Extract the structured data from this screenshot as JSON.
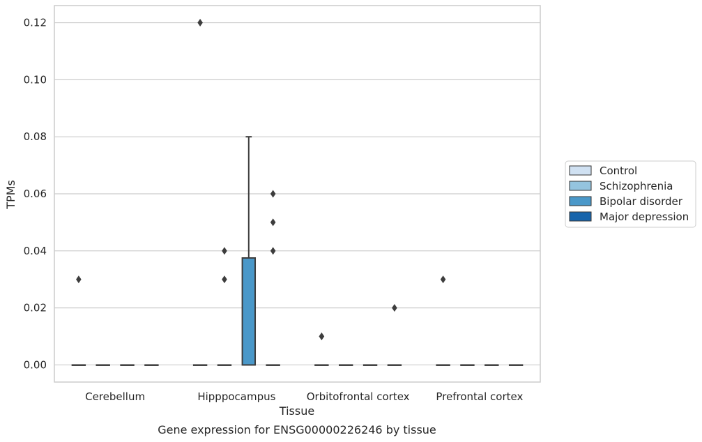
{
  "caption": "Gene expression for ENSG00000226246 by tissue",
  "chart_data": {
    "type": "box",
    "xlabel": "Tissue",
    "ylabel": "TPMs",
    "ylim": [
      -0.006,
      0.126
    ],
    "yticks": [
      "0.00",
      "0.02",
      "0.04",
      "0.06",
      "0.08",
      "0.10",
      "0.12"
    ],
    "categories": [
      "Cerebellum",
      "Hipppocampus",
      "Orbitofrontal cortex",
      "Prefrontal cortex"
    ],
    "grid": true,
    "legend_position": "right",
    "series": [
      {
        "name": "Control",
        "color": "#d0e1f2"
      },
      {
        "name": "Schizophrenia",
        "color": "#94c4df"
      },
      {
        "name": "Bipolar disorder",
        "color": "#4a98c9"
      },
      {
        "name": "Major depression",
        "color": "#1764ab"
      }
    ],
    "boxes": [
      {
        "category": "Cerebellum",
        "series": "Control",
        "q1": 0,
        "median": 0,
        "q3": 0,
        "whisker_low": 0,
        "whisker_high": 0,
        "outliers": [
          0.03
        ]
      },
      {
        "category": "Cerebellum",
        "series": "Schizophrenia",
        "q1": 0,
        "median": 0,
        "q3": 0,
        "whisker_low": 0,
        "whisker_high": 0,
        "outliers": []
      },
      {
        "category": "Cerebellum",
        "series": "Bipolar disorder",
        "q1": 0,
        "median": 0,
        "q3": 0,
        "whisker_low": 0,
        "whisker_high": 0,
        "outliers": []
      },
      {
        "category": "Cerebellum",
        "series": "Major depression",
        "q1": 0,
        "median": 0,
        "q3": 0,
        "whisker_low": 0,
        "whisker_high": 0,
        "outliers": []
      },
      {
        "category": "Hipppocampus",
        "series": "Control",
        "q1": 0,
        "median": 0,
        "q3": 0,
        "whisker_low": 0,
        "whisker_high": 0,
        "outliers": [
          0.12
        ]
      },
      {
        "category": "Hipppocampus",
        "series": "Schizophrenia",
        "q1": 0,
        "median": 0,
        "q3": 0,
        "whisker_low": 0,
        "whisker_high": 0,
        "outliers": [
          0.04,
          0.03
        ]
      },
      {
        "category": "Hipppocampus",
        "series": "Bipolar disorder",
        "q1": 0,
        "median": 0,
        "q3": 0.0375,
        "whisker_low": 0,
        "whisker_high": 0.08,
        "outliers": []
      },
      {
        "category": "Hipppocampus",
        "series": "Major depression",
        "q1": 0,
        "median": 0,
        "q3": 0,
        "whisker_low": 0,
        "whisker_high": 0,
        "outliers": [
          0.06,
          0.05,
          0.04
        ]
      },
      {
        "category": "Orbitofrontal cortex",
        "series": "Control",
        "q1": 0,
        "median": 0,
        "q3": 0,
        "whisker_low": 0,
        "whisker_high": 0,
        "outliers": [
          0.01,
          0.01
        ]
      },
      {
        "category": "Orbitofrontal cortex",
        "series": "Schizophrenia",
        "q1": 0,
        "median": 0,
        "q3": 0,
        "whisker_low": 0,
        "whisker_high": 0,
        "outliers": []
      },
      {
        "category": "Orbitofrontal cortex",
        "series": "Bipolar disorder",
        "q1": 0,
        "median": 0,
        "q3": 0,
        "whisker_low": 0,
        "whisker_high": 0,
        "outliers": []
      },
      {
        "category": "Orbitofrontal cortex",
        "series": "Major depression",
        "q1": 0,
        "median": 0,
        "q3": 0,
        "whisker_low": 0,
        "whisker_high": 0,
        "outliers": [
          0.02
        ]
      },
      {
        "category": "Prefrontal cortex",
        "series": "Control",
        "q1": 0,
        "median": 0,
        "q3": 0,
        "whisker_low": 0,
        "whisker_high": 0,
        "outliers": [
          0.03
        ]
      },
      {
        "category": "Prefrontal cortex",
        "series": "Schizophrenia",
        "q1": 0,
        "median": 0,
        "q3": 0,
        "whisker_low": 0,
        "whisker_high": 0,
        "outliers": []
      },
      {
        "category": "Prefrontal cortex",
        "series": "Bipolar disorder",
        "q1": 0,
        "median": 0,
        "q3": 0,
        "whisker_low": 0,
        "whisker_high": 0,
        "outliers": []
      },
      {
        "category": "Prefrontal cortex",
        "series": "Major depression",
        "q1": 0,
        "median": 0,
        "q3": 0,
        "whisker_low": 0,
        "whisker_high": 0,
        "outliers": []
      }
    ]
  }
}
